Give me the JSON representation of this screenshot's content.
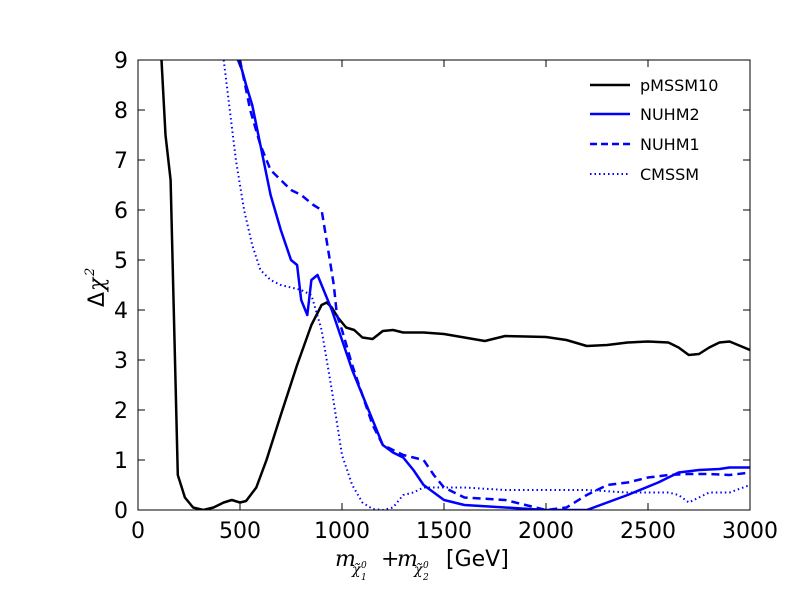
{
  "chart_data": {
    "type": "line",
    "title": "",
    "xlabel": {
      "base": "m",
      "sub1": "χ̃",
      "sub1_sub": "1",
      "sub1_sup": "0",
      "plus": "+",
      "sub2": "χ̃",
      "sub2_sub": "2",
      "sub2_sup": "0",
      "unit": "[GeV]"
    },
    "ylabel": {
      "delta": "Δ",
      "chi": "χ",
      "sup": "2"
    },
    "xlim": [
      0,
      3000
    ],
    "ylim": [
      0,
      9
    ],
    "xticks": [
      0,
      500,
      1000,
      1500,
      2000,
      2500,
      3000
    ],
    "yticks": [
      0,
      1,
      2,
      3,
      4,
      5,
      6,
      7,
      8,
      9
    ],
    "xtick_labels": [
      "0",
      "500",
      "1000",
      "1500",
      "2000",
      "2500",
      "3000"
    ],
    "ytick_labels": [
      "0",
      "1",
      "2",
      "3",
      "4",
      "5",
      "6",
      "7",
      "8",
      "9"
    ],
    "legend": {
      "location": "top-right"
    },
    "series": [
      {
        "name": "pMSSM10",
        "color": "#000000",
        "style": "solid",
        "x": [
          115,
          135,
          160,
          195,
          230,
          270,
          320,
          370,
          420,
          460,
          500,
          530,
          580,
          630,
          700,
          780,
          850,
          900,
          925,
          950,
          980,
          1020,
          1060,
          1100,
          1150,
          1200,
          1250,
          1300,
          1400,
          1500,
          1600,
          1700,
          1800,
          1900,
          2000,
          2100,
          2200,
          2300,
          2400,
          2500,
          2600,
          2650,
          2700,
          2750,
          2800,
          2850,
          2900,
          3000
        ],
        "y": [
          9.0,
          7.5,
          6.6,
          0.7,
          0.25,
          0.05,
          0.0,
          0.05,
          0.15,
          0.2,
          0.15,
          0.18,
          0.45,
          1.0,
          1.9,
          2.9,
          3.7,
          4.1,
          4.15,
          4.05,
          3.85,
          3.65,
          3.6,
          3.45,
          3.42,
          3.58,
          3.6,
          3.55,
          3.55,
          3.52,
          3.45,
          3.38,
          3.48,
          3.47,
          3.46,
          3.4,
          3.28,
          3.3,
          3.35,
          3.37,
          3.35,
          3.25,
          3.1,
          3.12,
          3.25,
          3.35,
          3.37,
          3.2
        ]
      },
      {
        "name": "NUHM2",
        "color": "#0000ff",
        "style": "solid",
        "x": [
          490,
          510,
          530,
          560,
          600,
          650,
          700,
          750,
          780,
          800,
          830,
          850,
          880,
          900,
          950,
          1000,
          1050,
          1100,
          1150,
          1200,
          1250,
          1300,
          1350,
          1400,
          1500,
          1600,
          1800,
          2000,
          2200,
          2400,
          2550,
          2650,
          2750,
          2850,
          2900,
          3000
        ],
        "y": [
          9.0,
          8.8,
          8.5,
          8.1,
          7.3,
          6.3,
          5.6,
          5.0,
          4.9,
          4.2,
          3.9,
          4.6,
          4.7,
          4.5,
          4.0,
          3.4,
          2.8,
          2.3,
          1.8,
          1.3,
          1.15,
          1.05,
          0.8,
          0.5,
          0.2,
          0.1,
          0.05,
          0.0,
          0.0,
          0.3,
          0.55,
          0.75,
          0.8,
          0.82,
          0.85,
          0.85
        ]
      },
      {
        "name": "NUHM1",
        "color": "#0000ff",
        "style": "dashed",
        "x": [
          500,
          520,
          550,
          600,
          650,
          700,
          750,
          800,
          860,
          900,
          940,
          960,
          975,
          1000,
          1050,
          1100,
          1150,
          1200,
          1250,
          1300,
          1350,
          1400,
          1450,
          1500,
          1600,
          1800,
          2000,
          2100,
          2200,
          2300,
          2400,
          2500,
          2600,
          2700,
          2800,
          2900,
          3000
        ],
        "y": [
          9.0,
          8.6,
          8.0,
          7.3,
          6.8,
          6.6,
          6.4,
          6.3,
          6.1,
          6.0,
          5.0,
          4.5,
          3.9,
          3.6,
          2.9,
          2.3,
          1.7,
          1.3,
          1.2,
          1.1,
          1.05,
          1.0,
          0.7,
          0.45,
          0.25,
          0.2,
          0.0,
          0.05,
          0.3,
          0.5,
          0.55,
          0.65,
          0.7,
          0.72,
          0.72,
          0.7,
          0.75
        ]
      },
      {
        "name": "CMSSM",
        "color": "#0000ff",
        "style": "dotted",
        "x": [
          420,
          450,
          480,
          520,
          560,
          600,
          650,
          700,
          750,
          800,
          850,
          900,
          950,
          1000,
          1050,
          1100,
          1150,
          1200,
          1250,
          1300,
          1350,
          1400,
          1450,
          1500,
          1600,
          1800,
          2000,
          2200,
          2400,
          2500,
          2600,
          2650,
          2700,
          2750,
          2800,
          2900,
          3000
        ],
        "y": [
          9.0,
          8.0,
          7.0,
          6.0,
          5.3,
          4.8,
          4.6,
          4.5,
          4.45,
          4.4,
          4.3,
          3.6,
          2.4,
          1.1,
          0.5,
          0.15,
          0.02,
          0.0,
          0.05,
          0.3,
          0.35,
          0.45,
          0.45,
          0.45,
          0.45,
          0.4,
          0.4,
          0.4,
          0.35,
          0.35,
          0.35,
          0.3,
          0.15,
          0.25,
          0.35,
          0.35,
          0.5
        ]
      }
    ]
  }
}
